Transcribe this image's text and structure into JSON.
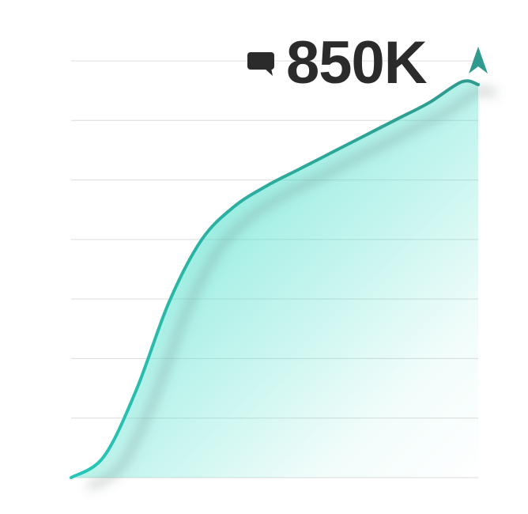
{
  "headline": {
    "value_label": "850K",
    "icon": "comment-icon"
  },
  "colors": {
    "line_start": "#27c6b6",
    "line_end": "#2f9a8e",
    "fill": "#4fe0cc",
    "arrow": "#2f9a8e",
    "grid": "#dcdcdc",
    "text": "#2b2b2b"
  },
  "chart_data": {
    "type": "area",
    "title": "",
    "xlabel": "",
    "ylabel": "",
    "grid": true,
    "gridlines": 8,
    "xlim": [
      0,
      1
    ],
    "ylim": [
      0,
      1
    ],
    "series": [
      {
        "points": [
          [
            0.0,
            0.0
          ],
          [
            0.08,
            0.05
          ],
          [
            0.16,
            0.21
          ],
          [
            0.24,
            0.42
          ],
          [
            0.32,
            0.57
          ],
          [
            0.4,
            0.65
          ],
          [
            0.48,
            0.7
          ],
          [
            0.56,
            0.74
          ],
          [
            0.64,
            0.78
          ],
          [
            0.72,
            0.82
          ],
          [
            0.8,
            0.86
          ],
          [
            0.88,
            0.9
          ],
          [
            0.96,
            0.95
          ],
          [
            1.0,
            1.0
          ]
        ]
      }
    ],
    "end_marker": "arrow",
    "end_value_label": "850K"
  }
}
